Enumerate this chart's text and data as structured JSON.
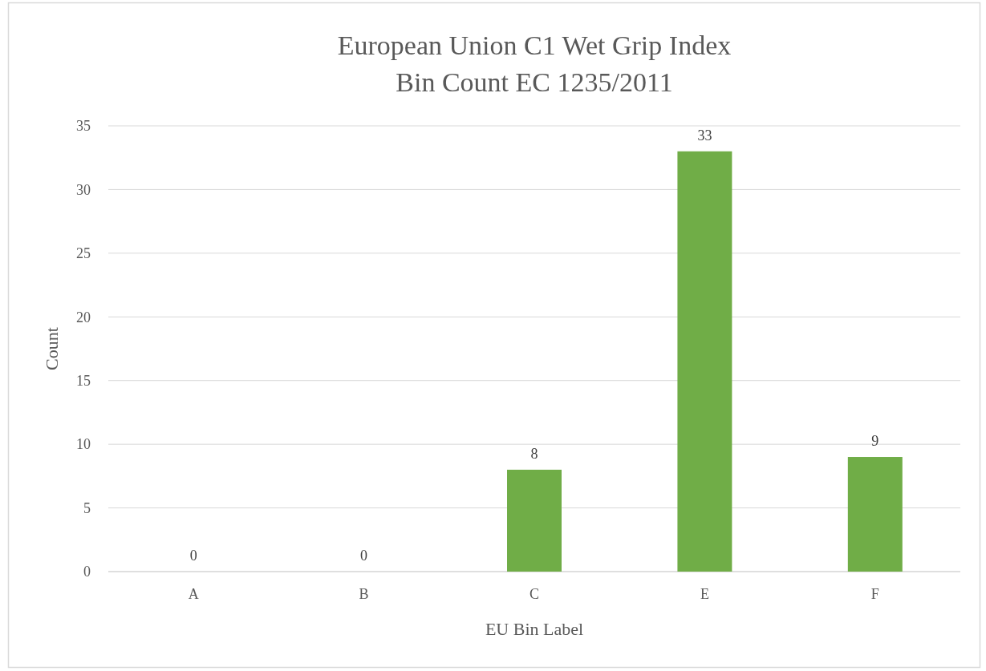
{
  "chart_data": {
    "type": "bar",
    "title": "European Union C1 Wet Grip Index Bin Count EC 1235/2011",
    "categories": [
      "A",
      "B",
      "C",
      "E",
      "F"
    ],
    "values": [
      0,
      0,
      8,
      33,
      9
    ],
    "color": "#70ad47",
    "xlabel": "EU Bin Label",
    "ylabel": "Count",
    "ylim": [
      0,
      35
    ],
    "yticks": [
      0,
      5,
      10,
      15,
      20,
      25,
      30,
      35
    ],
    "grid": "y",
    "data_labels": true
  }
}
